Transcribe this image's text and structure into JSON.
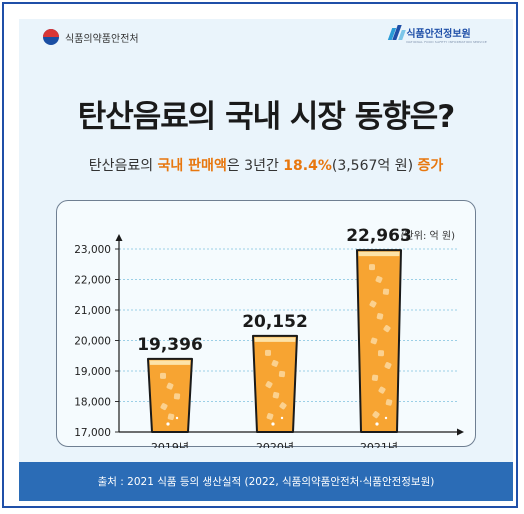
{
  "header": {
    "org_left": "식품의약품안전처",
    "org_right": "식품안전정보원",
    "org_right_en": "NATIONAL FOOD SAFETY INFORMATION SERVICE"
  },
  "title": "탄산음료의 국내 시장 동향은?",
  "subtitle": {
    "part1": "탄산음료의 ",
    "highlight1": "국내 판매액",
    "part2": "은 3년간 ",
    "highlight2": "18.4%",
    "part3": "(3,567억 원) ",
    "highlight3": "증가"
  },
  "chart_data": {
    "type": "bar",
    "unit_label": "(단위: 억 원)",
    "categories": [
      "2019년",
      "2020년",
      "2021년"
    ],
    "values": [
      19396,
      20152,
      22963
    ],
    "value_labels": [
      "19,396",
      "20,152",
      "22,963"
    ],
    "ylim": [
      17000,
      23000
    ],
    "yticks": [
      17000,
      18000,
      19000,
      20000,
      21000,
      22000,
      23000
    ],
    "ytick_labels": [
      "17,000",
      "18,000",
      "19,000",
      "20,000",
      "21,000",
      "22,000",
      "23,000"
    ],
    "grid": true
  },
  "colors": {
    "accent": "#e8770e",
    "footer": "#2b6cb6",
    "background": "#eaf4fb",
    "bar_fill": "#f7a432",
    "bar_top": "#fde3a8",
    "grid": "#9ccfe6"
  },
  "footer": {
    "source": "출처 : 2021 식품 등의 생산실적 (2022, 식품의약품안전처·식품안전정보원)"
  }
}
